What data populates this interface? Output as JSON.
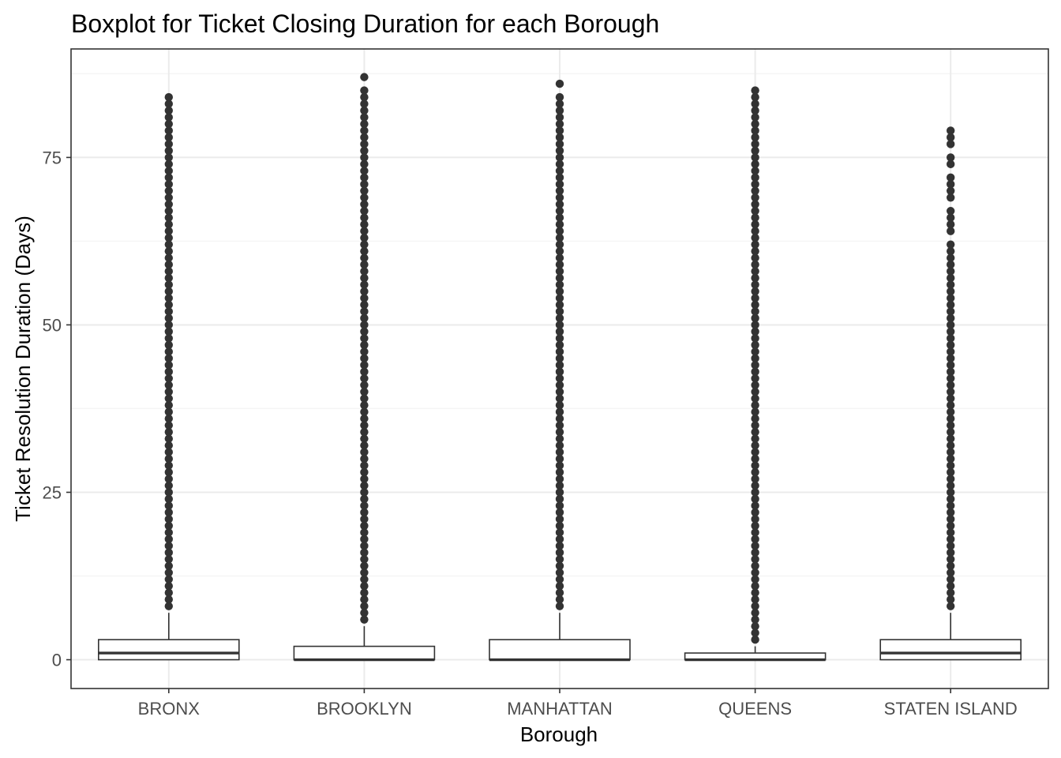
{
  "chart_data": {
    "type": "boxplot",
    "title": "Boxplot for Ticket Closing Duration for each Borough",
    "xlabel": "Borough",
    "ylabel": "Ticket Resolution Duration (Days)",
    "categories": [
      "BRONX",
      "BROOKLYN",
      "MANHATTAN",
      "QUEENS",
      "STATEN ISLAND"
    ],
    "ylim": [
      -4.3,
      91.2
    ],
    "y_ticks": [
      0,
      25,
      50,
      75
    ],
    "y_tick_labels": [
      "0",
      "25",
      "50",
      "75"
    ],
    "grid": true,
    "boxes": [
      {
        "category": "BRONX",
        "min": 0,
        "q1": 0,
        "median": 1,
        "q3": 3,
        "whisker_high": 7,
        "outlier_min": 8,
        "outlier_max": 84,
        "outlier_gaps": []
      },
      {
        "category": "BROOKLYN",
        "min": 0,
        "q1": 0,
        "median": 0,
        "q3": 2,
        "whisker_high": 5,
        "outlier_min": 6,
        "outlier_max": 87,
        "outlier_gaps": [
          86
        ]
      },
      {
        "category": "MANHATTAN",
        "min": 0,
        "q1": 0,
        "median": 0,
        "q3": 3,
        "whisker_high": 7,
        "outlier_min": 8,
        "outlier_max": 86,
        "outlier_gaps": [
          85
        ]
      },
      {
        "category": "QUEENS",
        "min": 0,
        "q1": 0,
        "median": 0,
        "q3": 1,
        "whisker_high": 2,
        "outlier_min": 3,
        "outlier_max": 85,
        "outlier_gaps": []
      },
      {
        "category": "STATEN ISLAND",
        "min": 0,
        "q1": 0,
        "median": 1,
        "q3": 3,
        "whisker_high": 7,
        "outlier_min": 8,
        "outlier_max": 79,
        "outlier_gaps": [
          76,
          73,
          68,
          63
        ]
      }
    ],
    "colors": {
      "box_stroke": "#333333",
      "point_fill": "#333333",
      "grid_major": "#ebebeb",
      "grid_minor": "#f5f5f5",
      "panel_border": "#333333",
      "tick_text": "#4d4d4d"
    }
  }
}
